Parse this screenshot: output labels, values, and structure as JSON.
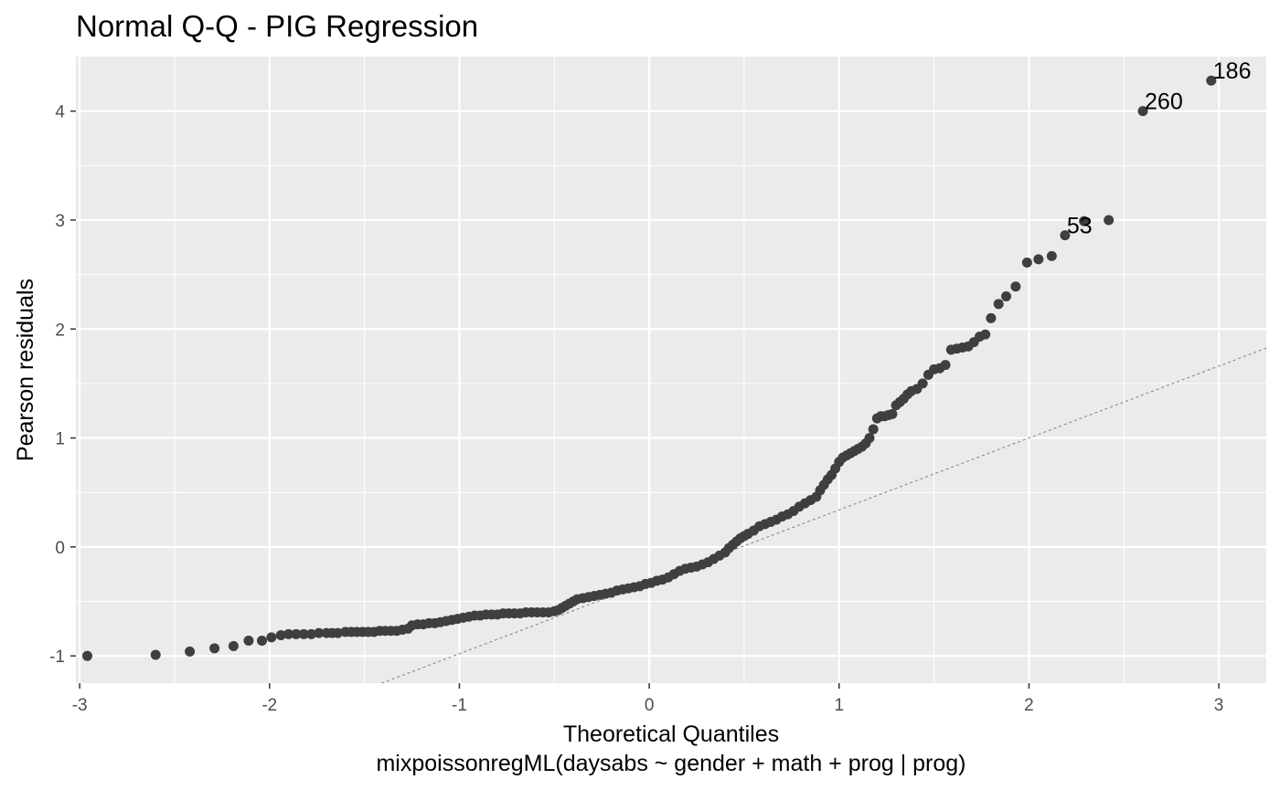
{
  "chart_data": {
    "type": "scatter",
    "title": "Normal Q-Q - PIG Regression",
    "xlabel": "Theoretical Quantiles",
    "xlabel_sub": "mixpoissonregML(daysabs ~ gender + math + prog | prog)",
    "ylabel": "Pearson residuals",
    "xlim": [
      -3.02,
      3.25
    ],
    "ylim": [
      -1.25,
      4.5
    ],
    "x_ticks": [
      -3,
      -2,
      -1,
      0,
      1,
      2,
      3
    ],
    "x_tick_labels": [
      "-3",
      "-2",
      "-1",
      "0",
      "1",
      "2",
      "3"
    ],
    "y_ticks": [
      -1,
      0,
      1,
      2,
      3,
      4
    ],
    "y_tick_labels": [
      "-1",
      "0",
      "1",
      "2",
      "3",
      "4"
    ],
    "grid": true,
    "background": "#ebebeb",
    "point_color": "#3f3f3f",
    "reference_line": {
      "intercept": -0.32,
      "slope": 0.66,
      "style": "dotted",
      "color": "#7f7f7f"
    },
    "labeled_points": [
      {
        "label": "186",
        "x": 2.96,
        "y": 4.28
      },
      {
        "label": "260",
        "x": 2.6,
        "y": 4.0
      },
      {
        "label": "53",
        "x": 2.19,
        "y": 2.86
      }
    ],
    "points": [
      [
        -2.96,
        -1.0
      ],
      [
        -2.6,
        -0.99
      ],
      [
        -2.42,
        -0.96
      ],
      [
        -2.29,
        -0.93
      ],
      [
        -2.19,
        -0.91
      ],
      [
        -2.11,
        -0.86
      ],
      [
        -2.04,
        -0.86
      ],
      [
        -1.99,
        -0.83
      ],
      [
        -1.94,
        -0.81
      ],
      [
        -1.9,
        -0.8
      ],
      [
        -1.86,
        -0.8
      ],
      [
        -1.82,
        -0.8
      ],
      [
        -1.78,
        -0.8
      ],
      [
        -1.74,
        -0.79
      ],
      [
        -1.7,
        -0.79
      ],
      [
        -1.67,
        -0.79
      ],
      [
        -1.64,
        -0.79
      ],
      [
        -1.6,
        -0.78
      ],
      [
        -1.57,
        -0.78
      ],
      [
        -1.54,
        -0.78
      ],
      [
        -1.51,
        -0.78
      ],
      [
        -1.48,
        -0.78
      ],
      [
        -1.45,
        -0.78
      ],
      [
        -1.42,
        -0.77
      ],
      [
        -1.39,
        -0.77
      ],
      [
        -1.36,
        -0.77
      ],
      [
        -1.33,
        -0.77
      ],
      [
        -1.3,
        -0.76
      ],
      [
        -1.27,
        -0.75
      ],
      [
        -1.25,
        -0.72
      ],
      [
        -1.22,
        -0.71
      ],
      [
        -1.19,
        -0.71
      ],
      [
        -1.16,
        -0.7
      ],
      [
        -1.13,
        -0.7
      ],
      [
        -1.1,
        -0.69
      ],
      [
        -1.07,
        -0.68
      ],
      [
        -1.04,
        -0.67
      ],
      [
        -1.01,
        -0.66
      ],
      [
        -0.98,
        -0.65
      ],
      [
        -0.95,
        -0.64
      ],
      [
        -0.92,
        -0.63
      ],
      [
        -0.89,
        -0.63
      ],
      [
        -0.86,
        -0.62
      ],
      [
        -0.83,
        -0.62
      ],
      [
        -0.8,
        -0.62
      ],
      [
        -0.77,
        -0.61
      ],
      [
        -0.74,
        -0.61
      ],
      [
        -0.71,
        -0.61
      ],
      [
        -0.68,
        -0.61
      ],
      [
        -0.65,
        -0.6
      ],
      [
        -0.62,
        -0.6
      ],
      [
        -0.59,
        -0.6
      ],
      [
        -0.56,
        -0.6
      ],
      [
        -0.53,
        -0.6
      ],
      [
        -0.5,
        -0.59
      ],
      [
        -0.48,
        -0.58
      ],
      [
        -0.46,
        -0.56
      ],
      [
        -0.44,
        -0.54
      ],
      [
        -0.42,
        -0.52
      ],
      [
        -0.4,
        -0.5
      ],
      [
        -0.38,
        -0.48
      ],
      [
        -0.35,
        -0.47
      ],
      [
        -0.32,
        -0.46
      ],
      [
        -0.29,
        -0.45
      ],
      [
        -0.26,
        -0.44
      ],
      [
        -0.23,
        -0.43
      ],
      [
        -0.2,
        -0.42
      ],
      [
        -0.17,
        -0.4
      ],
      [
        -0.14,
        -0.39
      ],
      [
        -0.11,
        -0.38
      ],
      [
        -0.08,
        -0.37
      ],
      [
        -0.05,
        -0.36
      ],
      [
        -0.02,
        -0.34
      ],
      [
        0.01,
        -0.33
      ],
      [
        0.04,
        -0.31
      ],
      [
        0.07,
        -0.3
      ],
      [
        0.1,
        -0.28
      ],
      [
        0.13,
        -0.25
      ],
      [
        0.16,
        -0.22
      ],
      [
        0.19,
        -0.2
      ],
      [
        0.22,
        -0.19
      ],
      [
        0.25,
        -0.18
      ],
      [
        0.28,
        -0.16
      ],
      [
        0.31,
        -0.14
      ],
      [
        0.34,
        -0.11
      ],
      [
        0.37,
        -0.08
      ],
      [
        0.4,
        -0.05
      ],
      [
        0.42,
        -0.01
      ],
      [
        0.44,
        0.02
      ],
      [
        0.46,
        0.05
      ],
      [
        0.48,
        0.08
      ],
      [
        0.5,
        0.1
      ],
      [
        0.52,
        0.12
      ],
      [
        0.55,
        0.15
      ],
      [
        0.58,
        0.19
      ],
      [
        0.61,
        0.21
      ],
      [
        0.64,
        0.23
      ],
      [
        0.67,
        0.25
      ],
      [
        0.7,
        0.28
      ],
      [
        0.73,
        0.3
      ],
      [
        0.76,
        0.33
      ],
      [
        0.79,
        0.37
      ],
      [
        0.82,
        0.4
      ],
      [
        0.85,
        0.43
      ],
      [
        0.88,
        0.46
      ],
      [
        0.9,
        0.52
      ],
      [
        0.92,
        0.57
      ],
      [
        0.94,
        0.62
      ],
      [
        0.96,
        0.66
      ],
      [
        0.98,
        0.72
      ],
      [
        1.0,
        0.78
      ],
      [
        1.02,
        0.82
      ],
      [
        1.04,
        0.84
      ],
      [
        1.06,
        0.86
      ],
      [
        1.08,
        0.88
      ],
      [
        1.1,
        0.9
      ],
      [
        1.12,
        0.92
      ],
      [
        1.14,
        0.95
      ],
      [
        1.16,
        1.0
      ],
      [
        1.18,
        1.08
      ],
      [
        1.2,
        1.18
      ],
      [
        1.22,
        1.2
      ],
      [
        1.24,
        1.2
      ],
      [
        1.26,
        1.21
      ],
      [
        1.28,
        1.22
      ],
      [
        1.3,
        1.3
      ],
      [
        1.32,
        1.33
      ],
      [
        1.34,
        1.36
      ],
      [
        1.36,
        1.4
      ],
      [
        1.38,
        1.43
      ],
      [
        1.41,
        1.45
      ],
      [
        1.44,
        1.5
      ],
      [
        1.47,
        1.58
      ],
      [
        1.5,
        1.63
      ],
      [
        1.53,
        1.64
      ],
      [
        1.56,
        1.67
      ],
      [
        1.59,
        1.81
      ],
      [
        1.62,
        1.82
      ],
      [
        1.65,
        1.83
      ],
      [
        1.68,
        1.84
      ],
      [
        1.71,
        1.88
      ],
      [
        1.74,
        1.93
      ],
      [
        1.77,
        1.95
      ],
      [
        1.8,
        2.1
      ],
      [
        1.84,
        2.23
      ],
      [
        1.88,
        2.3
      ],
      [
        1.93,
        2.39
      ],
      [
        1.99,
        2.61
      ],
      [
        2.05,
        2.64
      ],
      [
        2.12,
        2.67
      ],
      [
        2.19,
        2.86
      ],
      [
        2.29,
        2.99
      ],
      [
        2.42,
        3.0
      ],
      [
        2.6,
        4.0
      ],
      [
        2.96,
        4.28
      ]
    ]
  }
}
